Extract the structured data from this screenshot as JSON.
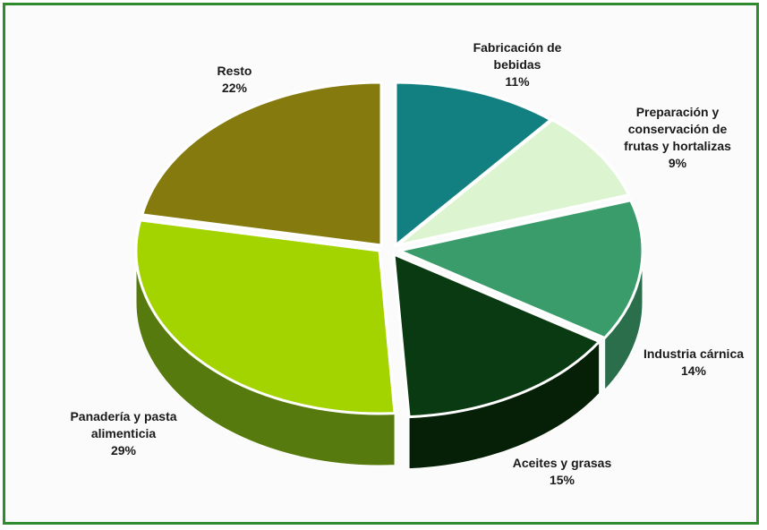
{
  "chart_data": {
    "type": "pie",
    "categories": [
      "Fabricación de bebidas",
      "Preparación y conservación de frutas y hortalizas",
      "Industria cárnica",
      "Aceites y grasas",
      "Panadería y pasta alimenticia",
      "Resto"
    ],
    "values": [
      11,
      9,
      14,
      15,
      29,
      22
    ],
    "unit": "%",
    "colors": [
      "#128080",
      "#dcf5d0",
      "#3a9c6a",
      "#0a3a12",
      "#a4d400",
      "#857a0e"
    ],
    "side_colors": [
      "#0c5a5a",
      "#b7d2ad",
      "#2a6e4c",
      "#052006",
      "#577a0e",
      "#5f5608"
    ],
    "labels": [
      {
        "lines": [
          "Fabricación de",
          "bebidas",
          "11%"
        ]
      },
      {
        "lines": [
          "Preparación y",
          "conservación de",
          "frutas y hortalizas",
          "9%"
        ]
      },
      {
        "lines": [
          "Industria cárnica",
          "14%"
        ]
      },
      {
        "lines": [
          "Aceites y grasas",
          "15%"
        ]
      },
      {
        "lines": [
          "Panadería y pasta",
          "alimenticia",
          "29%"
        ]
      },
      {
        "lines": [
          "Resto",
          "22%"
        ]
      }
    ],
    "legend": "none"
  }
}
